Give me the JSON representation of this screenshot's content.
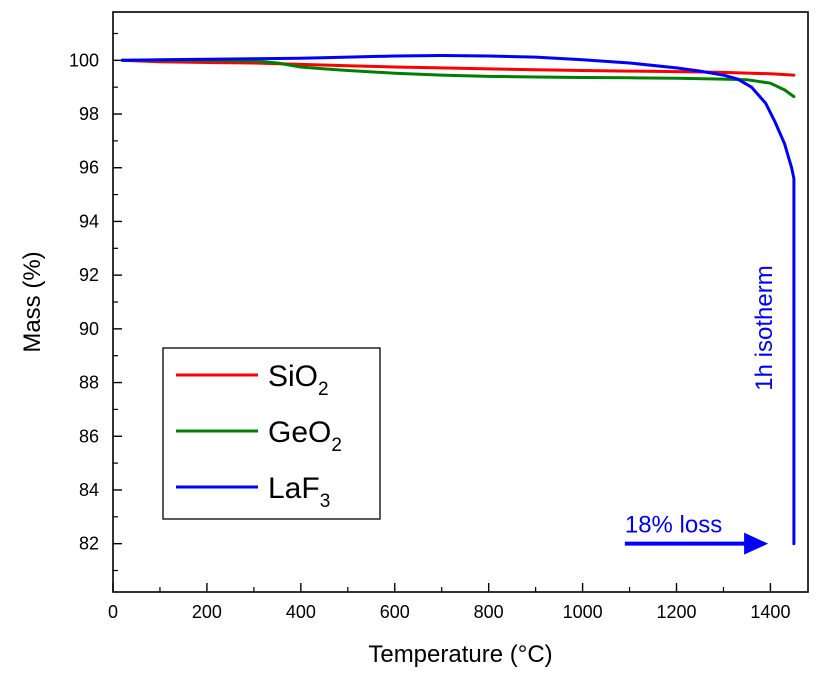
{
  "chart_data": {
    "type": "line",
    "xlabel": "Temperature (°C)",
    "ylabel": "Mass (%)",
    "xlim": [
      0,
      1480
    ],
    "ylim": [
      80.2,
      101.8
    ],
    "xticks": [
      0,
      200,
      400,
      600,
      800,
      1000,
      1200,
      1400
    ],
    "yticks": [
      82,
      84,
      86,
      88,
      90,
      92,
      94,
      96,
      98,
      100
    ],
    "grid": false,
    "legend_position": "lower-left",
    "series": [
      {
        "name": "SiO2",
        "legend_main": "SiO",
        "legend_sub": "2",
        "color": "#ff0000",
        "x": [
          20,
          100,
          200,
          300,
          400,
          500,
          600,
          700,
          800,
          900,
          1000,
          1100,
          1200,
          1300,
          1400,
          1450
        ],
        "y": [
          100.0,
          99.95,
          99.92,
          99.9,
          99.85,
          99.8,
          99.75,
          99.72,
          99.68,
          99.65,
          99.62,
          99.6,
          99.58,
          99.55,
          99.5,
          99.45
        ]
      },
      {
        "name": "GeO2",
        "legend_main": "GeO",
        "legend_sub": "2",
        "color": "#008000",
        "x": [
          20,
          100,
          200,
          300,
          350,
          400,
          450,
          500,
          600,
          700,
          800,
          900,
          1000,
          1100,
          1200,
          1300,
          1350,
          1400,
          1430,
          1450
        ],
        "y": [
          100.0,
          100.0,
          100.0,
          99.98,
          99.9,
          99.75,
          99.68,
          99.62,
          99.52,
          99.45,
          99.4,
          99.38,
          99.36,
          99.35,
          99.33,
          99.3,
          99.28,
          99.15,
          98.9,
          98.65
        ]
      },
      {
        "name": "LaF3",
        "legend_main": "LaF",
        "legend_sub": "3",
        "color": "#0000ff",
        "x": [
          20,
          100,
          200,
          300,
          400,
          500,
          600,
          700,
          800,
          900,
          1000,
          1100,
          1200,
          1250,
          1300,
          1330,
          1360,
          1390,
          1410,
          1430,
          1445,
          1450,
          1450,
          1450,
          1450
        ],
        "y": [
          100.0,
          100.02,
          100.04,
          100.06,
          100.08,
          100.12,
          100.16,
          100.18,
          100.16,
          100.12,
          100.02,
          99.9,
          99.72,
          99.6,
          99.45,
          99.3,
          99.0,
          98.4,
          97.7,
          96.9,
          96.0,
          95.6,
          92.5,
          88.0,
          82.0
        ]
      }
    ],
    "annotations": [
      {
        "text": "1h isotherm",
        "color": "#0000ff",
        "orientation": "vertical"
      },
      {
        "text": "18% loss",
        "color": "#0000ff",
        "arrow_from_x": 1090,
        "arrow_to_x": 1395,
        "arrow_y": 82
      }
    ]
  }
}
